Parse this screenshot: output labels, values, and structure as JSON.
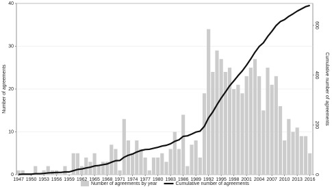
{
  "chart_data": {
    "type": "bar-line",
    "x": [
      1947,
      1948,
      1949,
      1950,
      1951,
      1952,
      1953,
      1954,
      1955,
      1956,
      1957,
      1958,
      1959,
      1960,
      1961,
      1962,
      1963,
      1964,
      1965,
      1966,
      1967,
      1968,
      1969,
      1970,
      1971,
      1972,
      1973,
      1974,
      1975,
      1976,
      1977,
      1978,
      1979,
      1980,
      1981,
      1982,
      1983,
      1984,
      1985,
      1986,
      1987,
      1988,
      1989,
      1990,
      1991,
      1992,
      1993,
      1994,
      1995,
      1996,
      1997,
      1998,
      1999,
      2000,
      2001,
      2002,
      2003,
      2004,
      2005,
      2006,
      2007,
      2008,
      2009,
      2010,
      2011,
      2012,
      2013,
      2014,
      2015,
      2016
    ],
    "series": [
      {
        "name": "Number of agreements by year",
        "color": "#cccccc",
        "kind": "bar",
        "values": [
          1,
          1,
          0,
          0,
          2,
          0,
          1,
          2,
          1,
          1,
          0,
          2,
          0,
          5,
          5,
          2,
          4,
          3,
          5,
          2,
          3,
          3,
          7,
          6,
          1,
          13,
          8,
          5,
          8,
          6,
          4,
          1,
          4,
          4,
          5,
          3,
          6,
          10,
          6,
          14,
          2,
          7,
          8,
          4,
          19,
          34,
          24,
          29,
          27,
          24,
          25,
          20,
          21,
          19,
          23,
          25,
          27,
          23,
          15,
          25,
          21,
          23,
          16,
          8,
          13,
          10,
          11,
          9,
          9,
          5
        ]
      },
      {
        "name": "Cumulative number of agreements",
        "color": "#111111",
        "kind": "line",
        "axis": "y2",
        "values": [
          1,
          2,
          2,
          2,
          4,
          4,
          5,
          7,
          8,
          9,
          9,
          11,
          11,
          16,
          21,
          23,
          27,
          30,
          35,
          37,
          40,
          43,
          50,
          56,
          57,
          70,
          78,
          83,
          91,
          97,
          101,
          102,
          106,
          110,
          115,
          118,
          124,
          134,
          140,
          154,
          156,
          163,
          171,
          175,
          194,
          228,
          252,
          281,
          308,
          332,
          357,
          377,
          398,
          417,
          440,
          465,
          492,
          515,
          530,
          555,
          576,
          599,
          615,
          623,
          636,
          646,
          657,
          666,
          675,
          680
        ]
      }
    ],
    "y_label": "Number of agreements",
    "y2_label": "Cumulative number of agreements",
    "xlim": [
      1946.5,
      2016.7
    ],
    "xticks": [
      1947,
      1950,
      1953,
      1956,
      1959,
      1962,
      1965,
      1968,
      1971,
      1974,
      1977,
      1980,
      1983,
      1986,
      1989,
      1992,
      1995,
      1998,
      2001,
      2004,
      2007,
      2010,
      2013,
      2016
    ],
    "ylim": [
      0,
      40
    ],
    "yticks": [
      0,
      10,
      20,
      30,
      40
    ],
    "y2lim": [
      0,
      688
    ],
    "y2ticks": [
      0,
      200,
      400,
      600
    ],
    "grid": true,
    "legend": "bottom"
  }
}
